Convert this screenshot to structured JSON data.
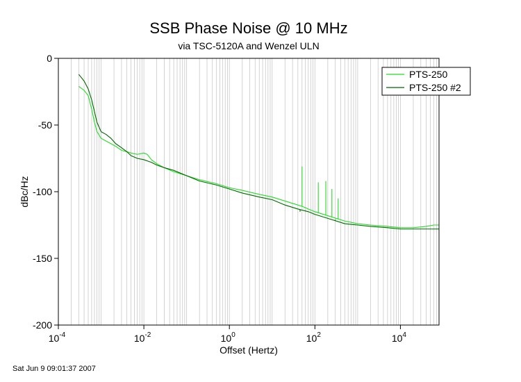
{
  "chart_data": {
    "type": "line",
    "title": "SSB Phase Noise @ 10 MHz",
    "subtitle": "via TSC-5120A and Wenzel ULN",
    "xlabel": "Offset (Hertz)",
    "ylabel": "dBc/Hz",
    "xscale": "log",
    "xlim": [
      0.0001,
      80000
    ],
    "ylim": [
      -200,
      0
    ],
    "x_ticks": [
      {
        "base": "10",
        "exp": "-4",
        "value": 0.0001
      },
      {
        "base": "10",
        "exp": "-2",
        "value": 0.01
      },
      {
        "base": "10",
        "exp": "0",
        "value": 1
      },
      {
        "base": "10",
        "exp": "2",
        "value": 100
      },
      {
        "base": "10",
        "exp": "4",
        "value": 10000
      }
    ],
    "y_ticks": [
      0,
      -50,
      -100,
      -150,
      -200
    ],
    "grid": "vertical",
    "legend_position": "top-right",
    "series": [
      {
        "name": "PTS-250",
        "color": "#22dd22",
        "points": [
          [
            0.0003,
            -21
          ],
          [
            0.0004,
            -24
          ],
          [
            0.0005,
            -28
          ],
          [
            0.0006,
            -38
          ],
          [
            0.0007,
            -48
          ],
          [
            0.0008,
            -55
          ],
          [
            0.001,
            -60
          ],
          [
            0.0013,
            -62
          ],
          [
            0.0017,
            -64
          ],
          [
            0.0022,
            -66
          ],
          [
            0.003,
            -69
          ],
          [
            0.004,
            -70
          ],
          [
            0.005,
            -71
          ],
          [
            0.007,
            -72
          ],
          [
            0.01,
            -71
          ],
          [
            0.012,
            -72
          ],
          [
            0.015,
            -76
          ],
          [
            0.02,
            -79
          ],
          [
            0.03,
            -82
          ],
          [
            0.05,
            -85
          ],
          [
            0.1,
            -88
          ],
          [
            0.2,
            -91
          ],
          [
            0.5,
            -94
          ],
          [
            1,
            -97
          ],
          [
            2,
            -99
          ],
          [
            5,
            -102
          ],
          [
            10,
            -104
          ],
          [
            20,
            -107
          ],
          [
            40,
            -110
          ],
          [
            50,
            -111
          ],
          [
            60,
            -112
          ],
          [
            70,
            -113
          ],
          [
            100,
            -115
          ],
          [
            200,
            -118
          ],
          [
            500,
            -122
          ],
          [
            1000,
            -124
          ],
          [
            2000,
            -125
          ],
          [
            5000,
            -126
          ],
          [
            10000,
            -127
          ],
          [
            20000,
            -127
          ],
          [
            40000,
            -126
          ],
          [
            60000,
            -125
          ],
          [
            80000,
            -125
          ]
        ],
        "spurs": [
          [
            50,
            -81
          ],
          [
            120,
            -93
          ],
          [
            180,
            -92
          ],
          [
            250,
            -98
          ],
          [
            350,
            -105
          ]
        ]
      },
      {
        "name": "PTS-250 #2",
        "color": "#006600",
        "points": [
          [
            0.0003,
            -12
          ],
          [
            0.0004,
            -17
          ],
          [
            0.0005,
            -23
          ],
          [
            0.0006,
            -31
          ],
          [
            0.0007,
            -40
          ],
          [
            0.0008,
            -48
          ],
          [
            0.001,
            -55
          ],
          [
            0.0013,
            -57
          ],
          [
            0.0017,
            -60
          ],
          [
            0.0022,
            -64
          ],
          [
            0.003,
            -67
          ],
          [
            0.004,
            -70
          ],
          [
            0.005,
            -73
          ],
          [
            0.007,
            -75
          ],
          [
            0.01,
            -76
          ],
          [
            0.015,
            -78
          ],
          [
            0.02,
            -80
          ],
          [
            0.03,
            -82
          ],
          [
            0.05,
            -84
          ],
          [
            0.1,
            -88
          ],
          [
            0.2,
            -92
          ],
          [
            0.5,
            -95
          ],
          [
            1,
            -98
          ],
          [
            2,
            -101
          ],
          [
            5,
            -104
          ],
          [
            10,
            -106
          ],
          [
            20,
            -110
          ],
          [
            40,
            -113
          ],
          [
            70,
            -115
          ],
          [
            100,
            -117
          ],
          [
            200,
            -120
          ],
          [
            500,
            -124
          ],
          [
            1000,
            -125
          ],
          [
            2000,
            -126
          ],
          [
            5000,
            -127
          ],
          [
            10000,
            -128
          ],
          [
            20000,
            -128
          ],
          [
            40000,
            -128
          ],
          [
            80000,
            -128
          ]
        ],
        "spurs": [
          [
            45,
            -115
          ],
          [
            60,
            -114
          ],
          [
            300,
            -121
          ],
          [
            600,
            -124
          ],
          [
            1100,
            -125
          ]
        ]
      }
    ]
  },
  "footer": {
    "timestamp": "Sat Jun  9 09:01:37 2007"
  }
}
